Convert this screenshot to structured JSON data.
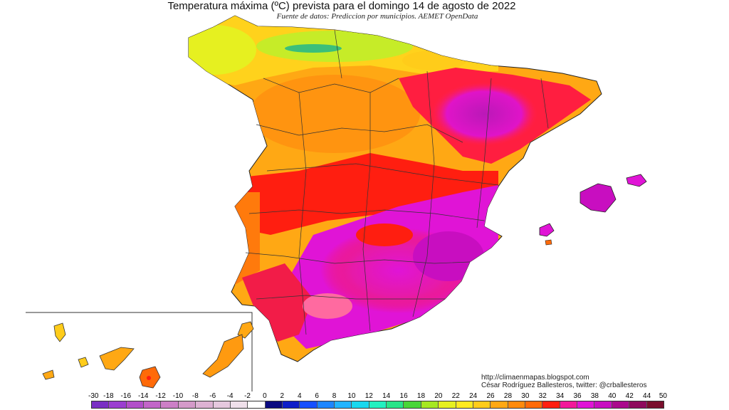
{
  "title": "Temperatura máxima (ºC) prevista para el domingo 14 de agosto de 2022",
  "subtitle": "Fuente de datos: Prediccion por municipios. AEMET OpenData",
  "credit": {
    "url": "http://climaenmapas.blogspot.com",
    "author": "César Rodríguez Ballesteros, twitter: @crballesteros"
  },
  "legend": {
    "labels": [
      "-30",
      "-18",
      "-16",
      "-14",
      "-12",
      "-10",
      "-8",
      "-6",
      "-4",
      "-2",
      "0",
      "2",
      "4",
      "6",
      "8",
      "10",
      "12",
      "14",
      "16",
      "18",
      "20",
      "22",
      "24",
      "26",
      "28",
      "30",
      "32",
      "34",
      "36",
      "38",
      "40",
      "42",
      "44",
      "50"
    ],
    "colors": [
      "#7a2fc4",
      "#9b3fd0",
      "#b24fc9",
      "#c265c8",
      "#cc7fc6",
      "#d49ac9",
      "#ddb2d3",
      "#e5c8de",
      "#efe0ea",
      "#ffffff",
      "#0a0a80",
      "#0e1ec8",
      "#1650ff",
      "#1d86ff",
      "#22b4ff",
      "#18d8ee",
      "#22f0c0",
      "#28e488",
      "#48d638",
      "#a6e822",
      "#e6f020",
      "#ffea20",
      "#ffcc1a",
      "#ffa814",
      "#ff8a0c",
      "#ff6a08",
      "#ff1e10",
      "#f2189a",
      "#e014d6",
      "#c80ec0",
      "#aa0a8c",
      "#8e0a5c",
      "#7a0e2c"
    ]
  }
}
